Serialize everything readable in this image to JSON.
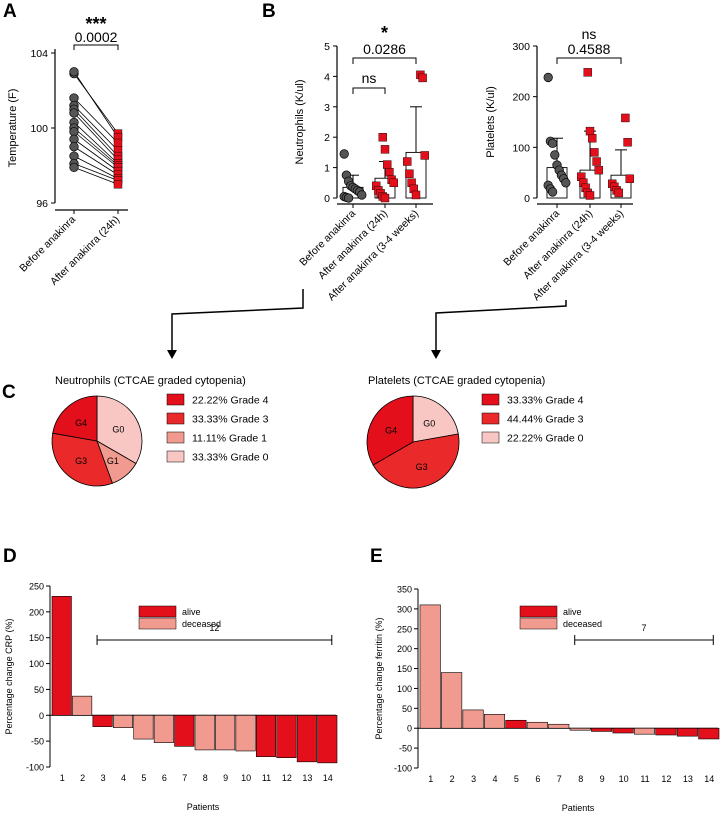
{
  "colors": {
    "red": "#e3101c",
    "pink": "#f19a8f",
    "paleRed": "#f8c7c3",
    "darkGrey": "#555555",
    "axis": "#000000"
  },
  "panels": {
    "A": {
      "letter": "A"
    },
    "B": {
      "letter": "B"
    },
    "C": {
      "letter": "C"
    },
    "D": {
      "letter": "D"
    },
    "E": {
      "letter": "E"
    }
  },
  "chart_data": [
    {
      "id": "temperature",
      "type": "scatter",
      "panel": "A",
      "ylabel": "Temperature (F)",
      "ylim": [
        96,
        104
      ],
      "yticks": [
        96,
        100,
        104
      ],
      "categories": [
        "Before anakinra",
        "After anakinra (24h)"
      ],
      "paired": true,
      "before": [
        102.9,
        103.0,
        101.6,
        101.2,
        101.0,
        100.8,
        100.3,
        100.0,
        99.8,
        99.4,
        99.0,
        98.5,
        98.1,
        97.9
      ],
      "after": [
        99.7,
        99.5,
        99.2,
        98.8,
        98.5,
        98.3,
        98.1,
        98.0,
        97.9,
        97.7,
        97.5,
        97.3,
        97.2,
        97.0
      ],
      "significance": {
        "stars": "***",
        "p": "0.0002"
      }
    },
    {
      "id": "neutrophils",
      "type": "bar",
      "panel": "B",
      "ylabel": "Neutrophils (K/ul)",
      "ylim": [
        0,
        5
      ],
      "yticks": [
        0,
        1,
        2,
        3,
        4,
        5
      ],
      "categories": [
        "Before anakinra",
        "After anakinra (24h)",
        "After anakinra (3-4 weeks)"
      ],
      "means": [
        0.35,
        0.65,
        1.5
      ],
      "sd_upper": [
        0.75,
        1.2,
        3.0
      ],
      "points": [
        [
          1.45,
          0.75,
          0.55,
          0.4,
          0.35,
          0.3,
          0.25,
          0.2,
          0.1,
          0.05,
          0.02,
          0.0
        ],
        [
          2.0,
          1.6,
          1.1,
          0.85,
          0.6,
          0.5,
          0.4,
          0.25,
          0.15,
          0.05,
          0.0
        ],
        [
          4.05,
          3.95,
          1.4,
          1.2,
          0.8,
          0.5,
          0.3,
          0.1
        ]
      ],
      "brackets": [
        {
          "from": 0,
          "to": 1,
          "label": "ns"
        },
        {
          "from": 0,
          "to": 2,
          "label": "0.0286",
          "stars": "*"
        }
      ]
    },
    {
      "id": "platelets",
      "type": "bar",
      "panel": "B",
      "ylabel": "Platelets (K/ul)",
      "ylim": [
        0,
        300
      ],
      "yticks": [
        0,
        100,
        200,
        300
      ],
      "categories": [
        "Before anakinra",
        "After anakinra (24h)",
        "After anakinra (3-4 weeks)"
      ],
      "means": [
        60,
        55,
        45
      ],
      "sd_upper": [
        118,
        132,
        95
      ],
      "points": [
        [
          238,
          112,
          108,
          85,
          65,
          55,
          45,
          38,
          30,
          25,
          18,
          12
        ],
        [
          248,
          132,
          118,
          90,
          72,
          55,
          42,
          30,
          20,
          10,
          5
        ],
        [
          158,
          110,
          38,
          28,
          22,
          15,
          10
        ]
      ],
      "brackets": [
        {
          "from": 0,
          "to": 2,
          "label": "0.4588",
          "stars": "ns"
        }
      ]
    },
    {
      "id": "neutrophil-pie",
      "type": "pie",
      "panel": "C",
      "title": "Neutrophils (CTCAE graded cytopenia)",
      "slices": [
        {
          "label": "G0",
          "legend": "33.33%  Grade 0",
          "value": 33.33,
          "color": "#f8c7c3"
        },
        {
          "label": "G1",
          "legend": "11.11%  Grade 1",
          "value": 11.11,
          "color": "#f19a8f"
        },
        {
          "label": "G3",
          "legend": "33.33%  Grade 3",
          "value": 33.33,
          "color": "#ea2a2a"
        },
        {
          "label": "G4",
          "legend": "22.22%  Grade 4",
          "value": 22.22,
          "color": "#e3101c"
        }
      ],
      "legendOrder": [
        3,
        2,
        1,
        0
      ]
    },
    {
      "id": "platelet-pie",
      "type": "pie",
      "panel": "C",
      "title": "Platelets (CTCAE graded cytopenia)",
      "slices": [
        {
          "label": "G0",
          "legend": "22.22%  Grade 0",
          "value": 22.22,
          "color": "#f8c7c3"
        },
        {
          "label": "G3",
          "legend": "44.44%  Grade 3",
          "value": 44.44,
          "color": "#ea2a2a"
        },
        {
          "label": "G4",
          "legend": "33.33%  Grade 4",
          "value": 33.33,
          "color": "#e3101c"
        }
      ],
      "legendOrder": [
        2,
        1,
        0
      ]
    },
    {
      "id": "crp-waterfall",
      "type": "bar",
      "panel": "D",
      "ylabel": "Percentage change CRP (%)",
      "xlabel": "Patients",
      "ylim": [
        -100,
        250
      ],
      "yticks": [
        -100,
        -50,
        0,
        50,
        100,
        150,
        200,
        250
      ],
      "categories": [
        "1",
        "2",
        "3",
        "4",
        "5",
        "6",
        "7",
        "8",
        "9",
        "10",
        "11",
        "12",
        "13",
        "14"
      ],
      "values": [
        230,
        37,
        -22,
        -24,
        -46,
        -53,
        -60,
        -67,
        -67,
        -69,
        -80,
        -82,
        -90,
        -92
      ],
      "status": [
        "alive",
        "deceased",
        "alive",
        "deceased",
        "deceased",
        "deceased",
        "alive",
        "deceased",
        "deceased",
        "deceased",
        "alive",
        "alive",
        "alive",
        "alive"
      ],
      "legend": {
        "alive": "alive",
        "deceased": "deceased"
      },
      "bracket": {
        "from": 3,
        "to": 14,
        "label": "12"
      }
    },
    {
      "id": "ferritin-waterfall",
      "type": "bar",
      "panel": "E",
      "ylabel": "Percentage change ferritin (%)",
      "xlabel": "Patients",
      "ylim": [
        -100,
        350
      ],
      "yticks": [
        -100,
        -50,
        0,
        50,
        100,
        150,
        200,
        250,
        300,
        350
      ],
      "categories": [
        "1",
        "2",
        "3",
        "4",
        "5",
        "6",
        "7",
        "8",
        "9",
        "10",
        "11",
        "12",
        "13",
        "14"
      ],
      "values": [
        310,
        140,
        46,
        35,
        20,
        15,
        10,
        -5,
        -8,
        -12,
        -15,
        -17,
        -20,
        -27
      ],
      "status": [
        "deceased",
        "deceased",
        "deceased",
        "deceased",
        "alive",
        "deceased",
        "deceased",
        "deceased",
        "alive",
        "alive",
        "deceased",
        "alive",
        "alive",
        "alive"
      ],
      "legend": {
        "alive": "alive",
        "deceased": "deceased"
      },
      "bracket": {
        "from": 8,
        "to": 14,
        "label": "7"
      }
    }
  ]
}
